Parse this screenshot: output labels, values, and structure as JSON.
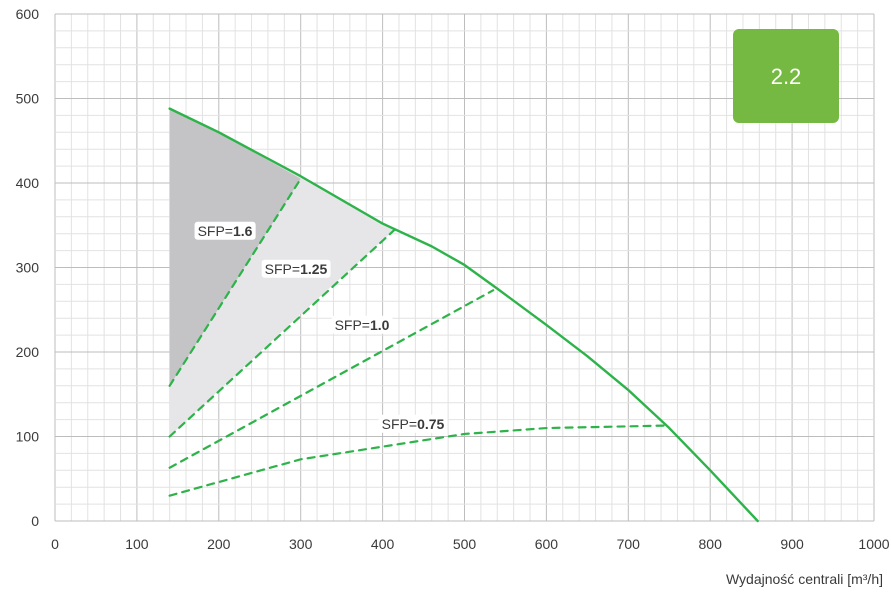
{
  "chart_data": {
    "type": "line",
    "title": "",
    "xlabel": "Wydajność centrali [m³/h]",
    "ylabel": "",
    "xlim": [
      0,
      1000
    ],
    "ylim": [
      0,
      600
    ],
    "x_ticks": [
      0,
      100,
      200,
      300,
      400,
      500,
      600,
      700,
      800,
      900,
      1000
    ],
    "y_ticks": [
      0,
      100,
      200,
      300,
      400,
      500,
      600
    ],
    "grid": true,
    "minor_grid": true,
    "badge": {
      "text": "2.2",
      "color": "#76b942"
    },
    "colors": {
      "curve": "#2db34a",
      "fill_dark": "#c4c4c6",
      "fill_light": "#e6e6e8",
      "grid_major": "#bdbdbd",
      "grid_minor": "#e2e2e2"
    },
    "series": [
      {
        "style": "solid",
        "x": [
          140,
          200,
          300,
          400,
          460,
          500,
          540,
          600,
          650,
          700,
          750,
          800,
          858
        ],
        "y": [
          488,
          460,
          408,
          352,
          325,
          303,
          275,
          232,
          195,
          155,
          110,
          60,
          0
        ]
      },
      {
        "style": "dashed",
        "label_prefix": "SFP=",
        "label_value": "1.6",
        "x": [
          140,
          300
        ],
        "y": [
          160,
          405
        ]
      },
      {
        "style": "dashed",
        "label_prefix": "SFP=",
        "label_value": "1.25",
        "x": [
          140,
          415
        ],
        "y": [
          100,
          345
        ]
      },
      {
        "style": "dashed",
        "label_prefix": "SFP=",
        "label_value": "1.0",
        "x": [
          140,
          535
        ],
        "y": [
          63,
          273
        ]
      },
      {
        "style": "dashed",
        "label_prefix": "SFP=",
        "label_value": "0.75",
        "x": [
          140,
          300,
          500,
          600,
          700,
          750
        ],
        "y": [
          30,
          73,
          103,
          110,
          112,
          113
        ]
      }
    ],
    "shaded_regions": [
      {
        "shade": "light",
        "x": [
          140,
          140,
          300,
          415,
          300
        ],
        "y": [
          100,
          488,
          408,
          345,
          245
        ]
      },
      {
        "shade": "dark",
        "x": [
          140,
          140,
          200,
          300
        ],
        "y": [
          160,
          488,
          460,
          405
        ]
      }
    ]
  }
}
